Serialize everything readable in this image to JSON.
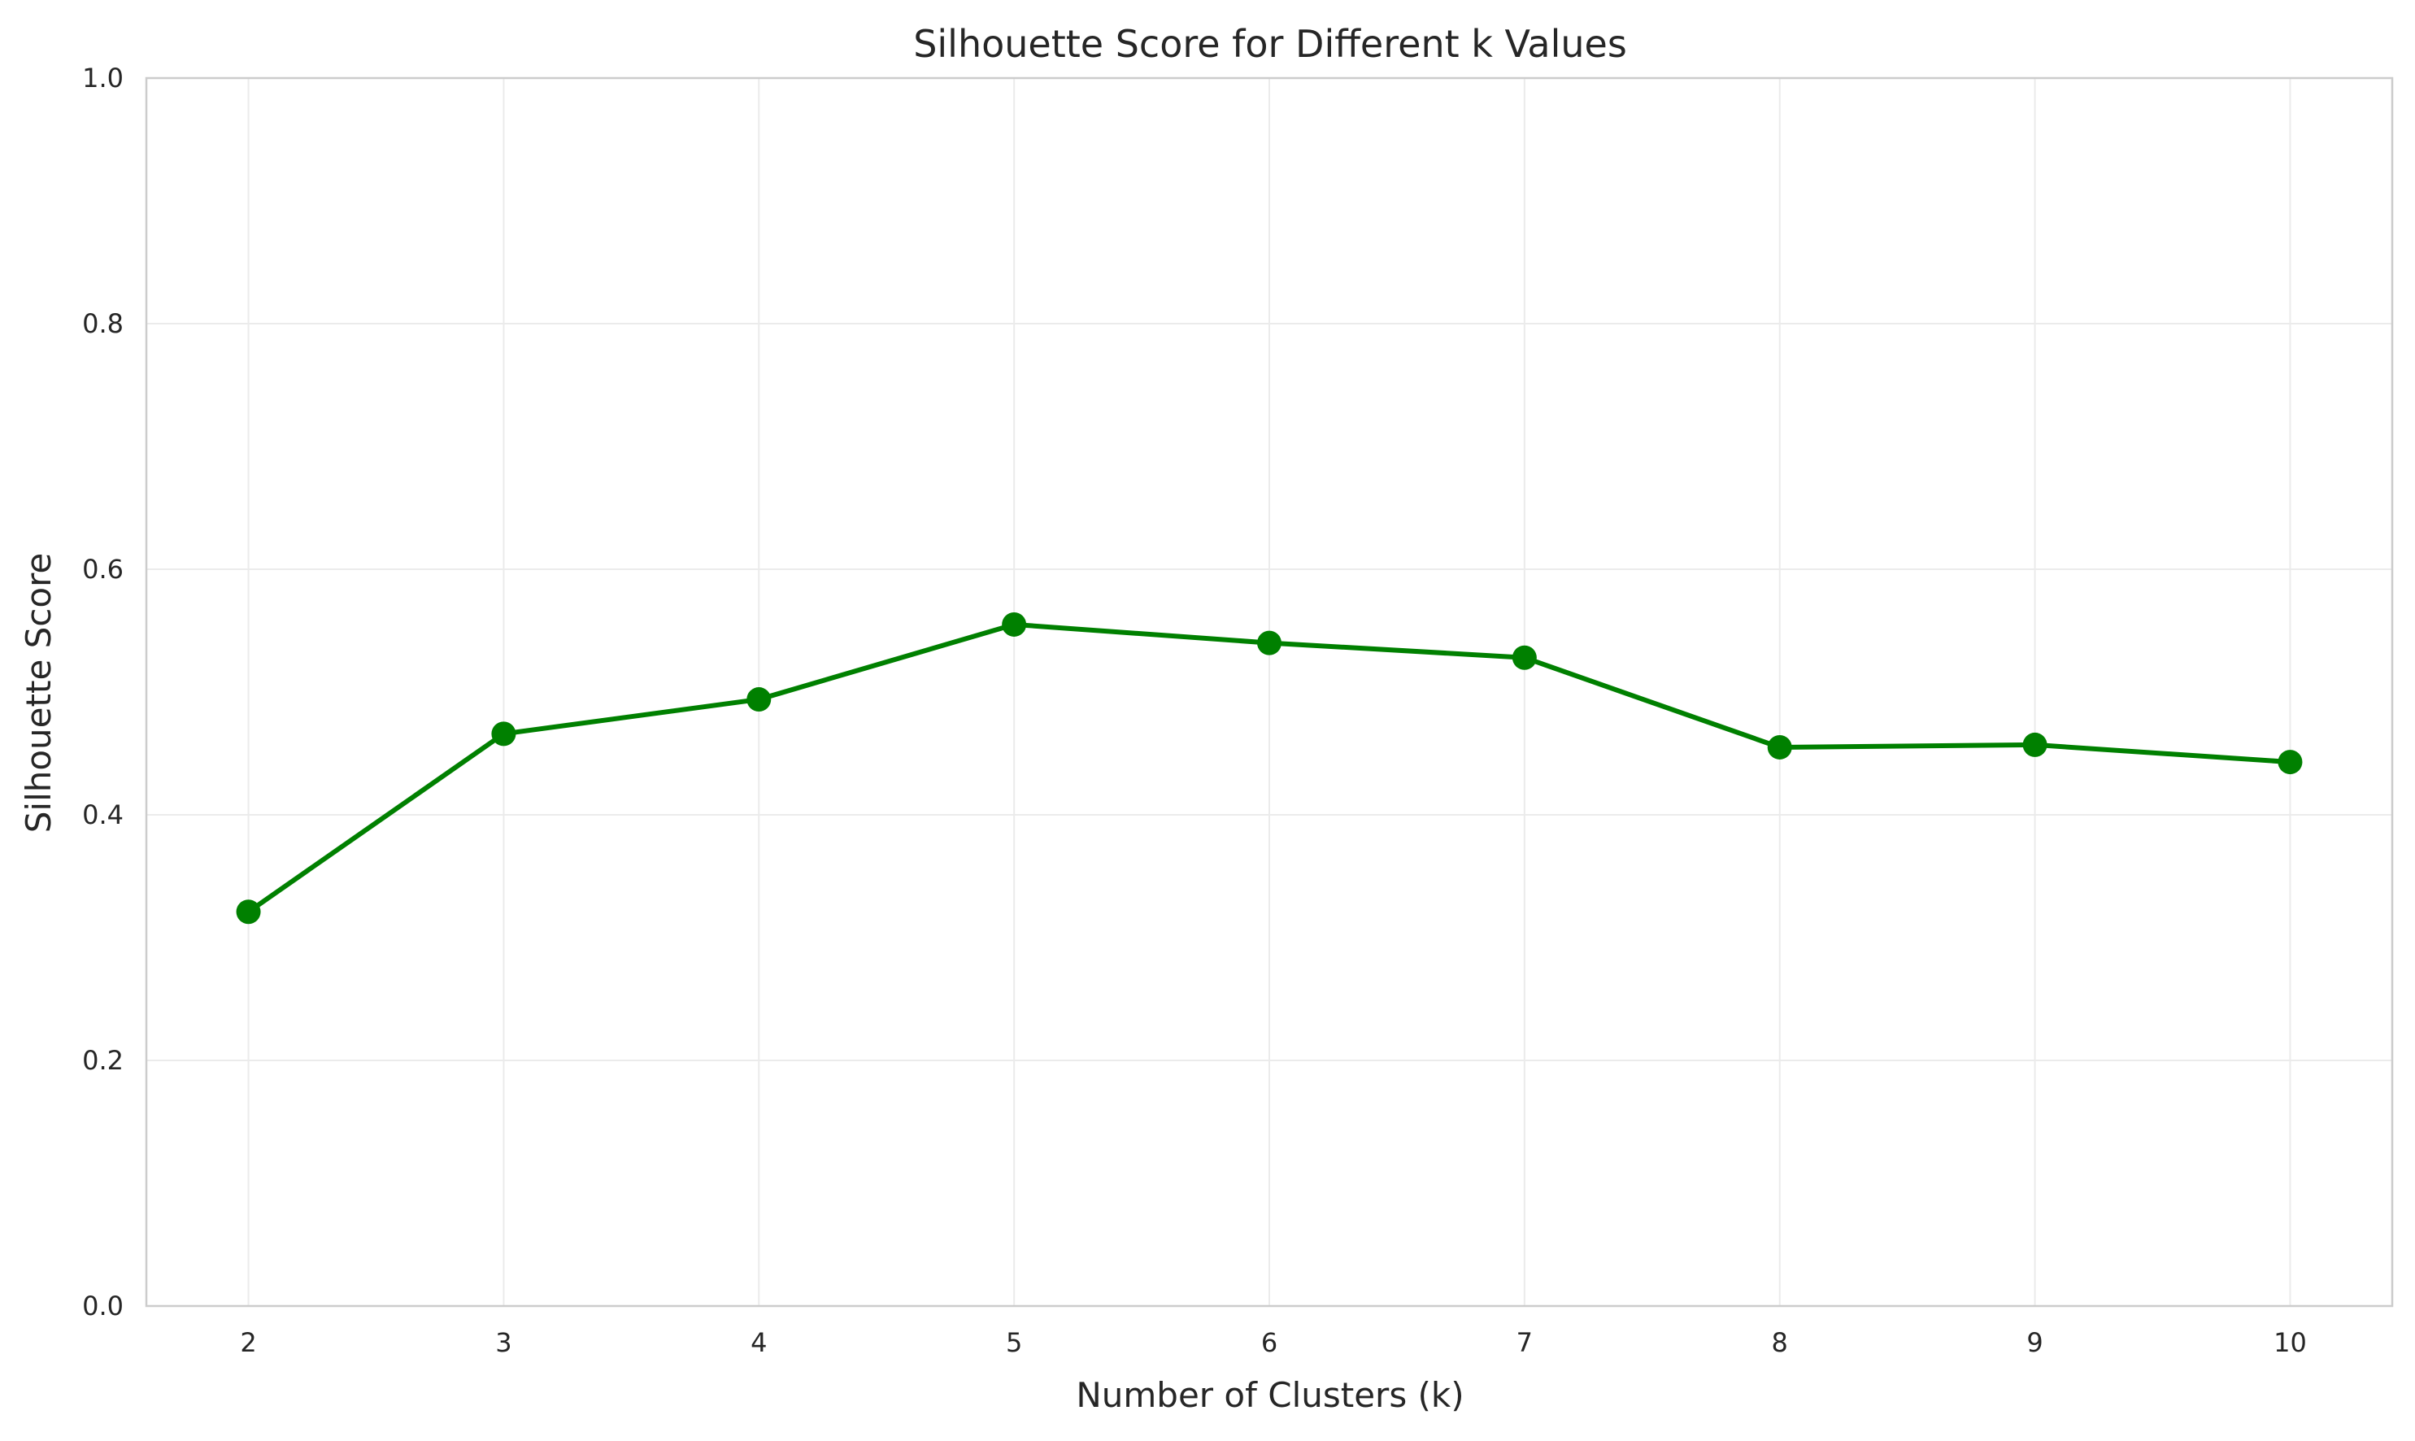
{
  "chart_data": {
    "type": "line",
    "title": "Silhouette Score for Different k Values",
    "xlabel": "Number of Clusters (k)",
    "ylabel": "Silhouette Score",
    "x": [
      2,
      3,
      4,
      5,
      6,
      7,
      8,
      9,
      10
    ],
    "series": [
      {
        "values": [
          0.321,
          0.466,
          0.494,
          0.555,
          0.54,
          0.528,
          0.455,
          0.457,
          0.443
        ],
        "color": "#008000",
        "marker": "circle"
      }
    ],
    "xlim": [
      1.6,
      10.4
    ],
    "ylim": [
      0.0,
      1.0
    ],
    "xticks": [
      "2",
      "3",
      "4",
      "5",
      "6",
      "7",
      "8",
      "9",
      "10"
    ],
    "yticks": [
      "0.0",
      "0.2",
      "0.4",
      "0.6",
      "0.8",
      "1.0"
    ],
    "grid": true,
    "legend": "none"
  }
}
